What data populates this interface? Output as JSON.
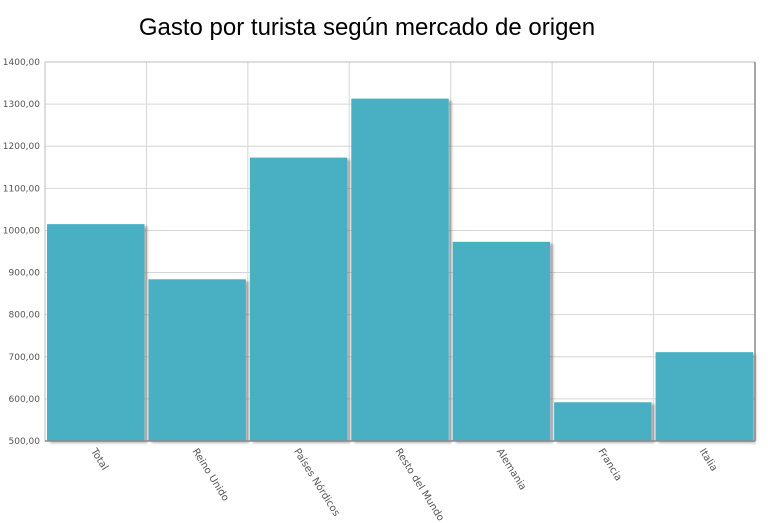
{
  "chart_data": {
    "type": "bar",
    "title": "Gasto por turista según mercado de origen",
    "categories": [
      "Total",
      "Reino Unido",
      "Países Nórdicos",
      "Resto del Mundo",
      "Alemania",
      "Francia",
      "Italia"
    ],
    "values": [
      1015,
      884,
      1173,
      1313,
      973,
      592,
      711
    ],
    "ylim": [
      500,
      1400
    ],
    "yticks": [
      "500,00",
      "600,00",
      "700,00",
      "800,00",
      "900,00",
      "1000,00",
      "1100,00",
      "1200,00",
      "1300,00",
      "1400,00"
    ],
    "grid": true,
    "bar_color": "#4ab0c4",
    "xlabel": "",
    "ylabel": ""
  }
}
